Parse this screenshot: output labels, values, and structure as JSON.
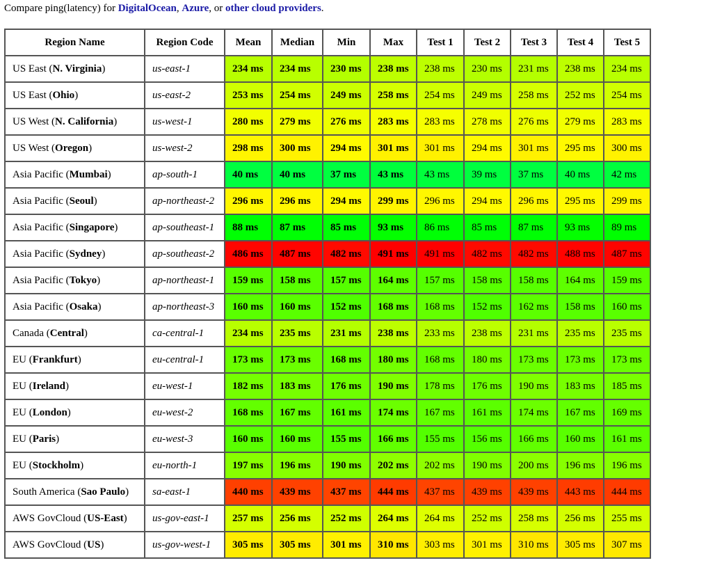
{
  "intro": {
    "prefix": "Compare ping(latency) for ",
    "link1": "DigitalOcean",
    "sep1": ", ",
    "link2": "Azure",
    "sep2": ", or ",
    "link3": "other cloud providers",
    "suffix": "."
  },
  "columns": [
    "Region Name",
    "Region Code",
    "Mean",
    "Median",
    "Min",
    "Max",
    "Test 1",
    "Test 2",
    "Test 3",
    "Test 4",
    "Test 5"
  ],
  "unit": "ms",
  "rows": [
    {
      "area": "US East",
      "city": "N. Virginia",
      "code": "us-east-1",
      "vals": [
        234,
        234,
        230,
        238,
        238,
        230,
        231,
        238,
        234
      ]
    },
    {
      "area": "US East",
      "city": "Ohio",
      "code": "us-east-2",
      "vals": [
        253,
        254,
        249,
        258,
        254,
        249,
        258,
        252,
        254
      ]
    },
    {
      "area": "US West",
      "city": "N. California",
      "code": "us-west-1",
      "vals": [
        280,
        279,
        276,
        283,
        283,
        278,
        276,
        279,
        283
      ]
    },
    {
      "area": "US West",
      "city": "Oregon",
      "code": "us-west-2",
      "vals": [
        298,
        300,
        294,
        301,
        301,
        294,
        301,
        295,
        300
      ]
    },
    {
      "area": "Asia Pacific",
      "city": "Mumbai",
      "code": "ap-south-1",
      "vals": [
        40,
        40,
        37,
        43,
        43,
        39,
        37,
        40,
        42
      ]
    },
    {
      "area": "Asia Pacific",
      "city": "Seoul",
      "code": "ap-northeast-2",
      "vals": [
        296,
        296,
        294,
        299,
        296,
        294,
        296,
        295,
        299
      ]
    },
    {
      "area": "Asia Pacific",
      "city": "Singapore",
      "code": "ap-southeast-1",
      "vals": [
        88,
        87,
        85,
        93,
        86,
        85,
        87,
        93,
        89
      ]
    },
    {
      "area": "Asia Pacific",
      "city": "Sydney",
      "code": "ap-southeast-2",
      "vals": [
        486,
        487,
        482,
        491,
        491,
        482,
        482,
        488,
        487
      ]
    },
    {
      "area": "Asia Pacific",
      "city": "Tokyo",
      "code": "ap-northeast-1",
      "vals": [
        159,
        158,
        157,
        164,
        157,
        158,
        158,
        164,
        159
      ]
    },
    {
      "area": "Asia Pacific",
      "city": "Osaka",
      "code": "ap-northeast-3",
      "vals": [
        160,
        160,
        152,
        168,
        168,
        152,
        162,
        158,
        160
      ]
    },
    {
      "area": "Canada",
      "city": "Central",
      "code": "ca-central-1",
      "vals": [
        234,
        235,
        231,
        238,
        233,
        238,
        231,
        235,
        235
      ]
    },
    {
      "area": "EU",
      "city": "Frankfurt",
      "code": "eu-central-1",
      "vals": [
        173,
        173,
        168,
        180,
        168,
        180,
        173,
        173,
        173
      ]
    },
    {
      "area": "EU",
      "city": "Ireland",
      "code": "eu-west-1",
      "vals": [
        182,
        183,
        176,
        190,
        178,
        176,
        190,
        183,
        185
      ]
    },
    {
      "area": "EU",
      "city": "London",
      "code": "eu-west-2",
      "vals": [
        168,
        167,
        161,
        174,
        167,
        161,
        174,
        167,
        169
      ]
    },
    {
      "area": "EU",
      "city": "Paris",
      "code": "eu-west-3",
      "vals": [
        160,
        160,
        155,
        166,
        155,
        156,
        166,
        160,
        161
      ]
    },
    {
      "area": "EU",
      "city": "Stockholm",
      "code": "eu-north-1",
      "vals": [
        197,
        196,
        190,
        202,
        202,
        190,
        200,
        196,
        196
      ]
    },
    {
      "area": "South America",
      "city": "Sao Paulo",
      "code": "sa-east-1",
      "vals": [
        440,
        439,
        437,
        444,
        437,
        439,
        439,
        443,
        444
      ]
    },
    {
      "area": "AWS GovCloud",
      "city": "US-East",
      "code": "us-gov-east-1",
      "vals": [
        257,
        256,
        252,
        264,
        264,
        252,
        258,
        256,
        255
      ]
    },
    {
      "area": "AWS GovCloud",
      "city": "US",
      "code": "us-gov-west-1",
      "vals": [
        305,
        305,
        301,
        310,
        303,
        301,
        310,
        305,
        307
      ]
    }
  ]
}
